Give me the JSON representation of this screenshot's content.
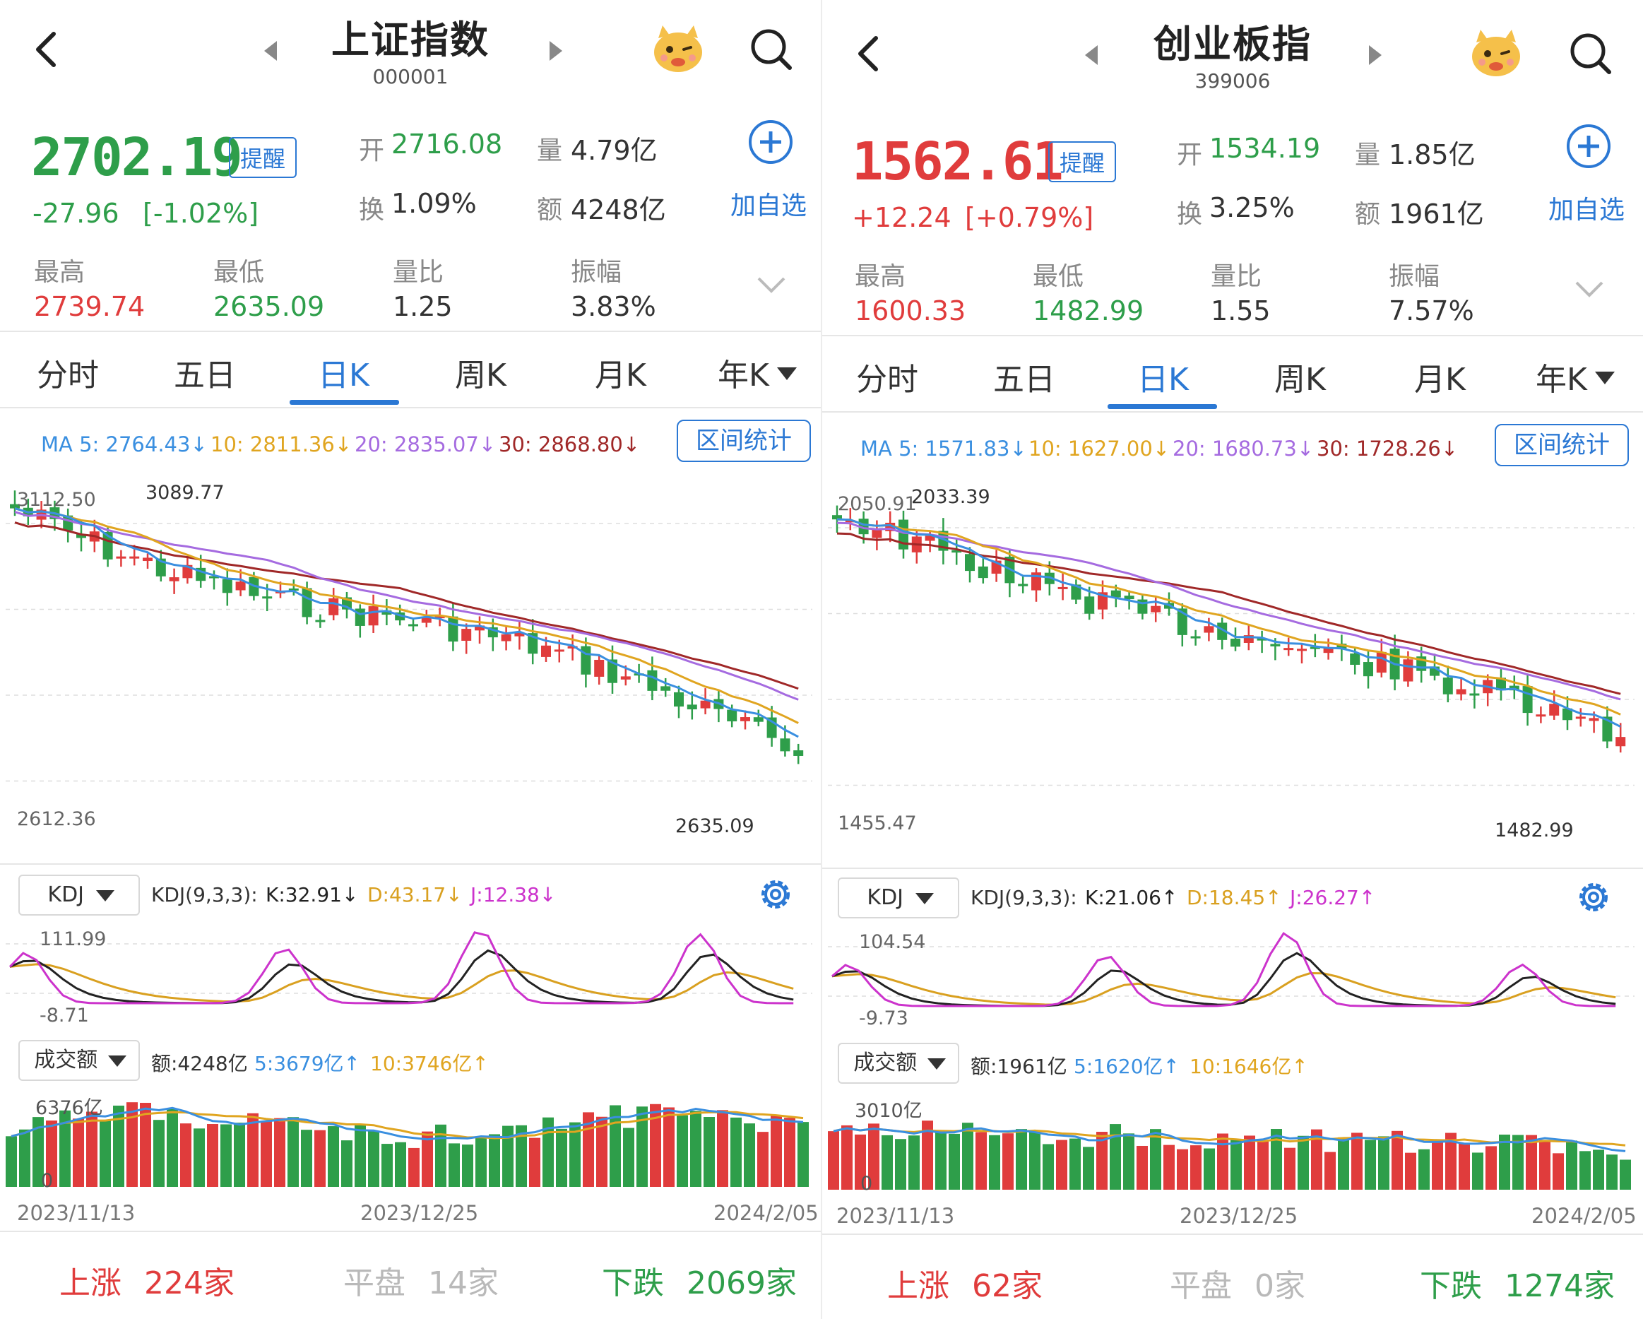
{
  "panels": [
    {
      "id": "sh",
      "title": "上证指数",
      "code": "000001",
      "price": "2702.19",
      "change": "-27.96",
      "change_pct": "[-1.02%]",
      "direction": "down",
      "remind_label": "提醒",
      "open_label": "开",
      "open": "2716.08",
      "volume_label": "量",
      "volume": "4.79亿",
      "turnover_label": "换",
      "turnover": "1.09%",
      "amount_label": "额",
      "amount": "4248亿",
      "add_watch_label": "加自选",
      "high_label": "最高",
      "high": "2739.74",
      "low_label": "最低",
      "low": "2635.09",
      "vol_ratio_label": "量比",
      "vol_ratio": "1.25",
      "amplitude_label": "振幅",
      "amplitude": "3.83%",
      "tabs": [
        "分时",
        "五日",
        "日K",
        "周K",
        "月K",
        "年K"
      ],
      "active_tab": 2,
      "ma": {
        "ma5": "MA 5: 2764.43↓",
        "ma10": "10: 2811.36↓",
        "ma20": "20: 2835.07↓",
        "ma30": "30: 2868.80↓"
      },
      "range_stat_label": "区间统计",
      "chart_top_label": "3112.50",
      "chart_bottom_label": "2612.36",
      "max_marker": "3089.77",
      "min_marker": "2635.09",
      "kdj_select": "KDJ",
      "kdj_text": {
        "prefix": "KDJ(9,3,3):",
        "k": "K:32.91↓",
        "d": "D:43.17↓",
        "j": "J:12.38↓"
      },
      "kdj_top": "111.99",
      "kdj_bottom": "-8.71",
      "amount_select": "成交额",
      "amount_text": {
        "amt": "额:4248亿",
        "ma5": "5:3679亿↑",
        "ma10": "10:3746亿↑"
      },
      "amount_axis_top": "6376亿",
      "amount_axis_zero": "0",
      "dates": [
        "2023/11/13",
        "2023/12/25",
        "2024/2/05"
      ],
      "footer": {
        "up_label": "上涨",
        "up_count": "224家",
        "flat_label": "平盘",
        "flat_count": "14家",
        "down_label": "下跌",
        "down_count": "2069家"
      }
    },
    {
      "id": "cy",
      "title": "创业板指",
      "code": "399006",
      "price": "1562.61",
      "change": "+12.24",
      "change_pct": "[+0.79%]",
      "direction": "up",
      "remind_label": "提醒",
      "open_label": "开",
      "open": "1534.19",
      "volume_label": "量",
      "volume": "1.85亿",
      "turnover_label": "换",
      "turnover": "3.25%",
      "amount_label": "额",
      "amount": "1961亿",
      "add_watch_label": "加自选",
      "high_label": "最高",
      "high": "1600.33",
      "low_label": "最低",
      "low": "1482.99",
      "vol_ratio_label": "量比",
      "vol_ratio": "1.55",
      "amplitude_label": "振幅",
      "amplitude": "7.57%",
      "tabs": [
        "分时",
        "五日",
        "日K",
        "周K",
        "月K",
        "年K"
      ],
      "active_tab": 2,
      "ma": {
        "ma5": "MA 5: 1571.83↓",
        "ma10": "10: 1627.00↓",
        "ma20": "20: 1680.73↓",
        "ma30": "30: 1728.26↓"
      },
      "range_stat_label": "区间统计",
      "chart_top_label": "2050.91",
      "chart_bottom_label": "1455.47",
      "max_marker": "2033.39",
      "min_marker": "1482.99",
      "kdj_select": "KDJ",
      "kdj_text": {
        "prefix": "KDJ(9,3,3):",
        "k": "K:21.06↑",
        "d": "D:18.45↑",
        "j": "J:26.27↑"
      },
      "kdj_top": "104.54",
      "kdj_bottom": "-9.73",
      "amount_select": "成交额",
      "amount_text": {
        "amt": "额:1961亿",
        "ma5": "5:1620亿↑",
        "ma10": "10:1646亿↑"
      },
      "amount_axis_top": "3010亿",
      "amount_axis_zero": "0",
      "dates": [
        "2023/11/13",
        "2023/12/25",
        "2024/2/05"
      ],
      "footer": {
        "up_label": "上涨",
        "up_count": "62家",
        "flat_label": "平盘",
        "flat_count": "0家",
        "down_label": "下跌",
        "down_count": "1274家"
      }
    }
  ],
  "colors": {
    "up": "#e03c3c",
    "down": "#2e9e4a",
    "accent": "#2b78d4",
    "ma5": "#3a8fe0",
    "ma10": "#e0a520",
    "ma20": "#a56be0",
    "ma30": "#a02828",
    "kdj_k": "#222222",
    "kdj_d": "#d9a020",
    "kdj_j": "#cc33cc"
  },
  "icons": [
    "back-icon",
    "prev-arrow-icon",
    "next-arrow-icon",
    "mascot-icon",
    "search-icon",
    "add-circle-icon",
    "chevron-down-icon",
    "settings-gear-icon",
    "dropdown-triangle-icon"
  ]
}
